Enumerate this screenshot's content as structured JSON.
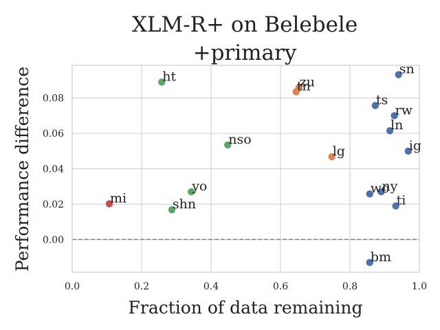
{
  "chart_data": {
    "type": "scatter",
    "title_lines": [
      "XLM-R+ on Belebele",
      "+primary"
    ],
    "xlabel": "Fraction of data remaining",
    "ylabel": "Performance difference",
    "xlim": [
      0.0,
      1.0
    ],
    "ylim": [
      -0.0185,
      0.0985
    ],
    "xticks": [
      0.0,
      0.2,
      0.4,
      0.6,
      0.8,
      1.0
    ],
    "xtick_labels": [
      "0.0",
      "0.2",
      "0.4",
      "0.6",
      "0.8",
      "1.0"
    ],
    "yticks": [
      0.0,
      0.02,
      0.04,
      0.06,
      0.08
    ],
    "ytick_labels": [
      "0.00",
      "0.02",
      "0.04",
      "0.06",
      "0.08"
    ],
    "grid": true,
    "reference_line": {
      "y": 0.0,
      "style": "dashed",
      "color": "#808080"
    },
    "colors": {
      "blue": "#4c72b0",
      "orange": "#dd8452",
      "green": "#55a868",
      "red": "#c44e52"
    },
    "points": [
      {
        "label": "sn",
        "x": 0.94,
        "y": 0.0932,
        "color": "blue"
      },
      {
        "label": "ts",
        "x": 0.873,
        "y": 0.0758,
        "color": "blue"
      },
      {
        "label": "rw",
        "x": 0.928,
        "y": 0.07,
        "color": "blue"
      },
      {
        "label": "ln",
        "x": 0.915,
        "y": 0.0615,
        "color": "blue"
      },
      {
        "label": "ig",
        "x": 0.968,
        "y": 0.05,
        "color": "blue"
      },
      {
        "label": "ny",
        "x": 0.89,
        "y": 0.027,
        "color": "blue"
      },
      {
        "label": "wo",
        "x": 0.857,
        "y": 0.0258,
        "color": "blue"
      },
      {
        "label": "ti",
        "x": 0.932,
        "y": 0.019,
        "color": "blue"
      },
      {
        "label": "bm",
        "x": 0.857,
        "y": -0.013,
        "color": "blue"
      },
      {
        "label": "zu",
        "x": 0.653,
        "y": 0.0858,
        "color": "orange"
      },
      {
        "label": "tn",
        "x": 0.645,
        "y": 0.0835,
        "color": "orange"
      },
      {
        "label": "lg",
        "x": 0.748,
        "y": 0.0468,
        "color": "orange"
      },
      {
        "label": "ht",
        "x": 0.258,
        "y": 0.089,
        "color": "green"
      },
      {
        "label": "nso",
        "x": 0.448,
        "y": 0.0535,
        "color": "green"
      },
      {
        "label": "yo",
        "x": 0.343,
        "y": 0.027,
        "color": "green"
      },
      {
        "label": "shn",
        "x": 0.287,
        "y": 0.0168,
        "color": "green"
      },
      {
        "label": "mi",
        "x": 0.107,
        "y": 0.0202,
        "color": "red"
      }
    ]
  }
}
